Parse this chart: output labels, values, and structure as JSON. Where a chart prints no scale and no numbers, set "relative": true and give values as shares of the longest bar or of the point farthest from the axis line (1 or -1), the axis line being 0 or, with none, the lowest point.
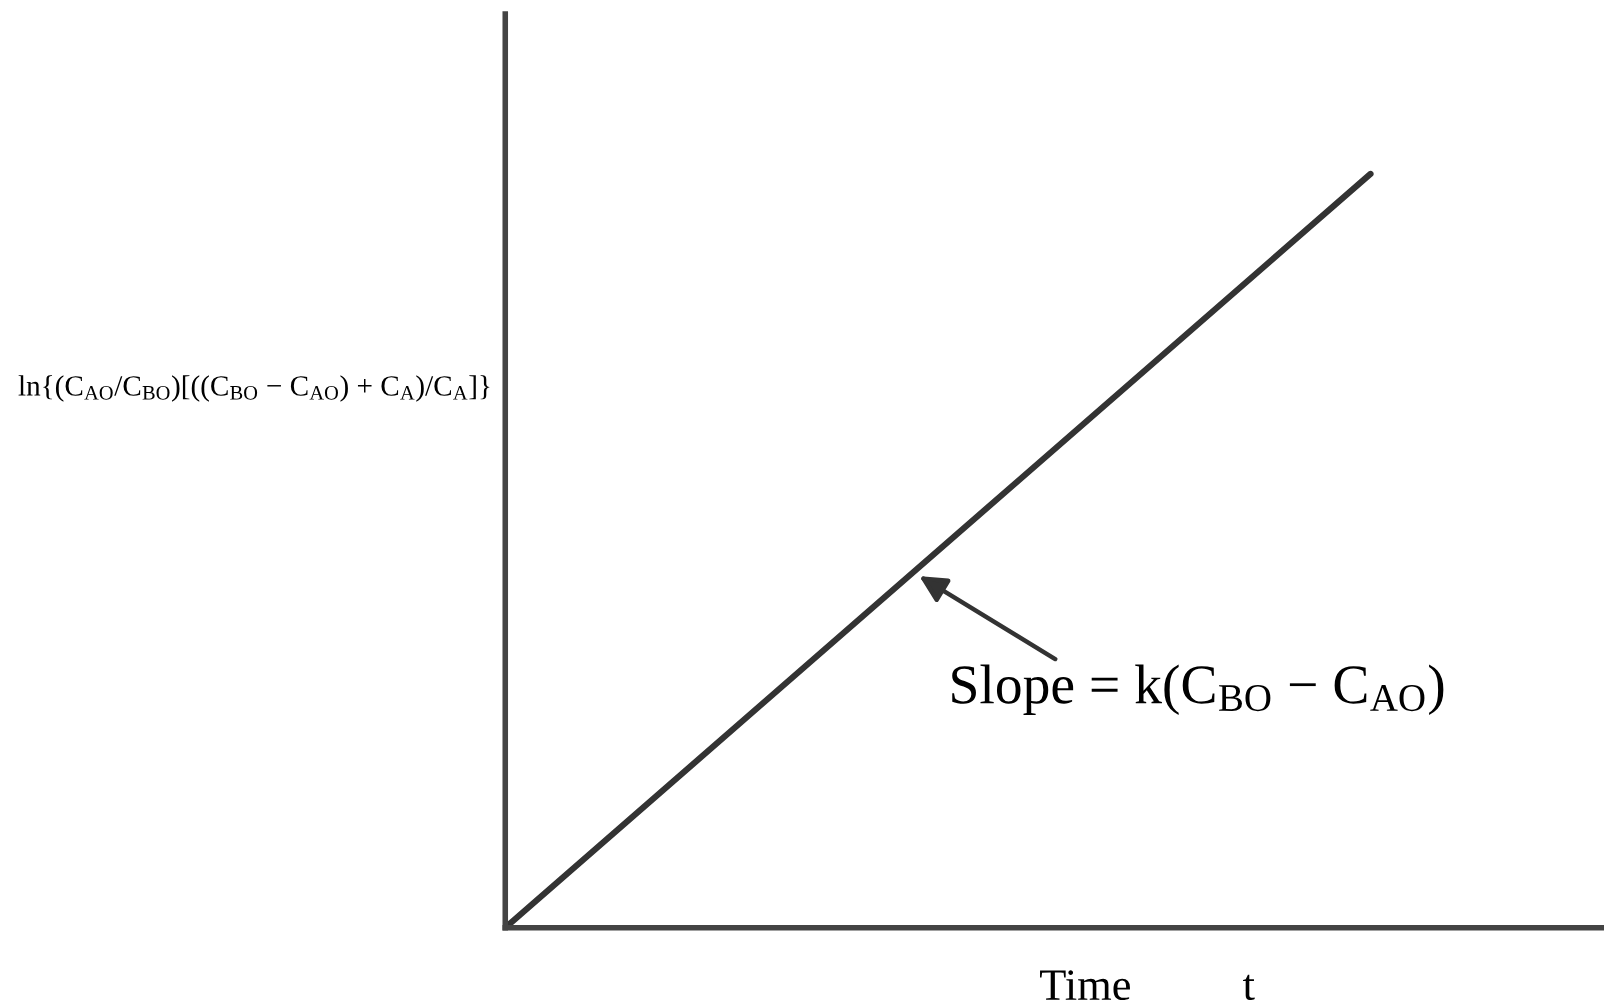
{
  "chart_data": {
    "type": "line",
    "relative": true,
    "xlabel": "Time          t",
    "ylabel": "ln{(C$_{AO}$/C$_{BO}$)[((C$_{BO}$ − C$_{AO}$) + C$_{A}$)/C$_{A}$]}",
    "categories": [
      null,
      null
    ],
    "values": [
      0,
      1
    ],
    "color": "#333333",
    "annotations": [
      "Slope = k(C$_{BO}$ − C$_{AO}$)"
    ]
  }
}
